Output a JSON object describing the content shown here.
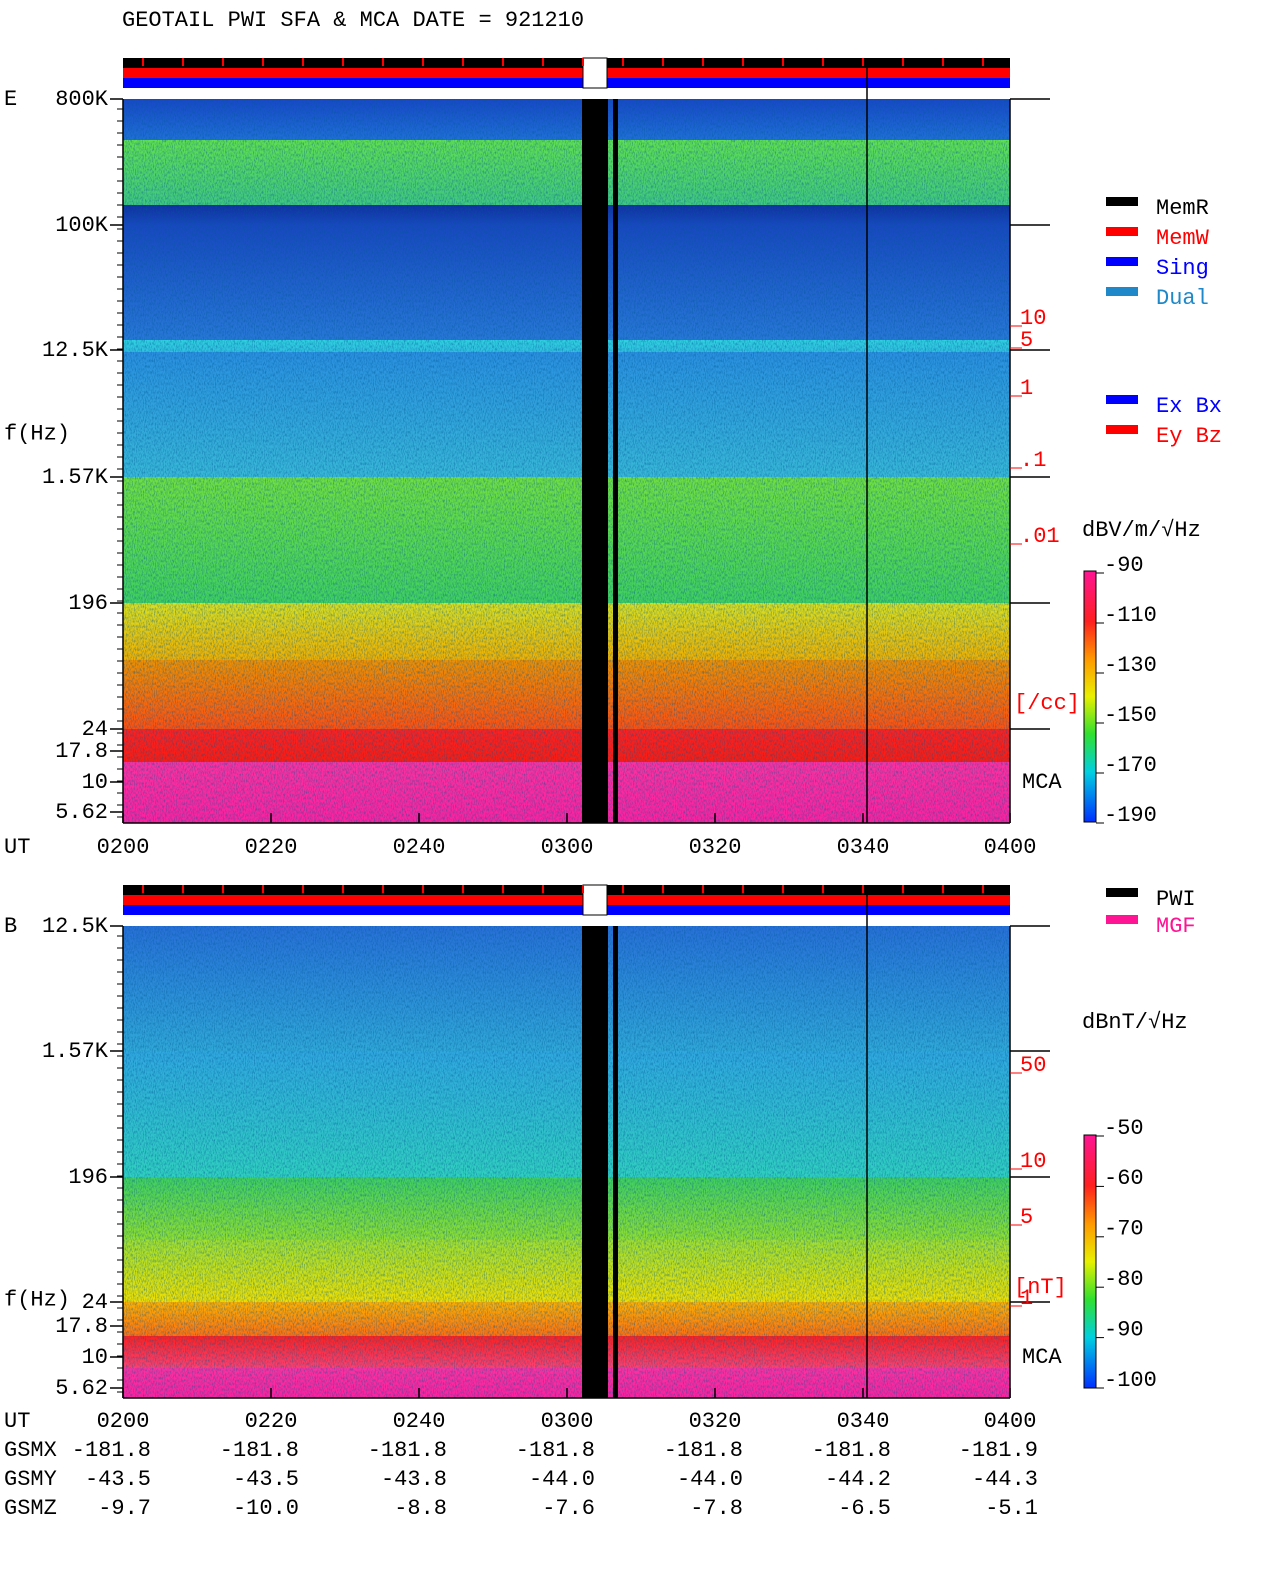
{
  "title": "GEOTAIL  PWI SFA & MCA   DATE = 921210",
  "panels": [
    {
      "label": "E",
      "y_label": "f(Hz)",
      "freq_ticks": [
        "800K",
        "100K",
        "12.5K",
        "1.57K",
        "196",
        "24",
        "17.8",
        "10",
        "5.62"
      ],
      "right_ticks": [
        "10",
        "5",
        "1",
        ".1",
        ".01"
      ],
      "right_unit": "[/cc]",
      "mca": "MCA",
      "legend_a": [
        "MemR",
        "MemW",
        "Sing",
        "Dual"
      ],
      "legend_b": [
        "Ex Bx",
        "Ey Bz"
      ],
      "colorbar": {
        "unit": "dBV/m/√Hz",
        "lim": [
          -190,
          -90
        ],
        "ticks": [
          -90,
          -110,
          -130,
          -150,
          -170,
          -190
        ]
      },
      "time_label": "UT",
      "time_ticks": [
        "0200",
        "0220",
        "0240",
        "0300",
        "0320",
        "0340",
        "0400"
      ]
    },
    {
      "label": "B",
      "y_label": "f(Hz)",
      "freq_ticks": [
        "12.5K",
        "1.57K",
        "196",
        "24",
        "17.8",
        "10",
        "5.62"
      ],
      "right_ticks": [
        "50",
        "10",
        "5",
        "1"
      ],
      "right_unit": "[nT]",
      "mca": "MCA",
      "legend_a": [
        "PWI",
        "MGF"
      ],
      "colorbar": {
        "unit": "dBnT/√Hz",
        "lim": [
          -100,
          -50
        ],
        "ticks": [
          -50,
          -60,
          -70,
          -80,
          -90,
          -100
        ]
      },
      "time_label": "UT",
      "time_ticks": [
        "0200",
        "0220",
        "0240",
        "0300",
        "0320",
        "0340",
        "0400"
      ]
    }
  ],
  "ephemeris": {
    "rows": [
      {
        "label": "GSMX",
        "values": [
          "-181.8",
          "-181.8",
          "-181.8",
          "-181.8",
          "-181.8",
          "-181.8",
          "-181.9"
        ]
      },
      {
        "label": "GSMY",
        "values": [
          "-43.5",
          "-43.5",
          "-43.8",
          "-44.0",
          "-44.0",
          "-44.2",
          "-44.3"
        ]
      },
      {
        "label": "GSMZ",
        "values": [
          "-9.7",
          "-10.0",
          "-8.8",
          "-7.6",
          "-7.8",
          "-6.5",
          "-5.1"
        ]
      }
    ]
  }
}
